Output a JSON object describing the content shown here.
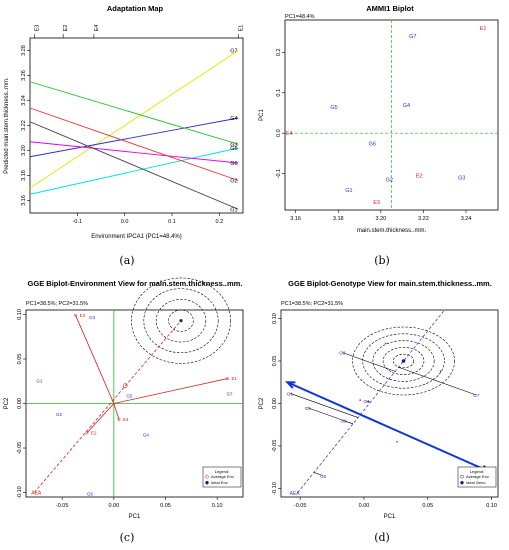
{
  "chart_data": [
    {
      "type": "line",
      "title": "Adaptation Map",
      "xlabel": "Environment IPCA1 (PC1=48.4%)",
      "ylabel": "Predicted main.stem.thickness..mm.",
      "xlim": [
        -0.2,
        0.25
      ],
      "ylim": [
        3.15,
        3.29
      ],
      "xticks": [
        "-0.1",
        "0.0",
        "0.1",
        "0.2"
      ],
      "yticks": [
        "3.16",
        "3.18",
        "3.20",
        "3.22",
        "3.24",
        "3.26",
        "3.28"
      ],
      "top_axis": [
        {
          "label": "E3",
          "x": -0.19
        },
        {
          "label": "E2",
          "x": -0.13
        },
        {
          "label": "E4",
          "x": -0.065
        },
        {
          "label": "E1",
          "x": 0.24
        }
      ],
      "series": [
        {
          "name": "G7",
          "color": "#e6e600",
          "points": [
            [
              -0.2,
              3.17
            ],
            [
              0.24,
              3.28
            ]
          ]
        },
        {
          "name": "G4",
          "color": "#2b2bd6",
          "points": [
            [
              -0.2,
              3.195
            ],
            [
              0.24,
              3.226
            ]
          ]
        },
        {
          "name": "G3",
          "color": "#1fbf1f",
          "points": [
            [
              -0.2,
              3.255
            ],
            [
              0.24,
              3.205
            ]
          ]
        },
        {
          "name": "G5",
          "color": "#00e0e0",
          "points": [
            [
              -0.2,
              3.165
            ],
            [
              0.24,
              3.202
            ]
          ]
        },
        {
          "name": "G6",
          "color": "#e600e6",
          "points": [
            [
              -0.2,
              3.207
            ],
            [
              0.24,
              3.19
            ]
          ]
        },
        {
          "name": "G2",
          "color": "#e63333",
          "points": [
            [
              -0.2,
              3.234
            ],
            [
              0.24,
              3.176
            ]
          ]
        },
        {
          "name": "G1",
          "color": "#404040",
          "points": [
            [
              -0.2,
              3.223
            ],
            [
              0.24,
              3.153
            ]
          ]
        }
      ],
      "line_labels": [
        "G7",
        "G4",
        "G3",
        "G5",
        "G6",
        "G2",
        "G1"
      ]
    },
    {
      "type": "scatter",
      "title": "AMMI1 Biplot",
      "subtitle": "PC1=48.4%",
      "xlabel": "main.stem.thickness..mm.",
      "ylabel": "PC1",
      "xlim": [
        3.155,
        3.255
      ],
      "ylim": [
        -0.19,
        0.28
      ],
      "xticks": [
        "3.16",
        "3.18",
        "3.20",
        "3.22",
        "3.24"
      ],
      "yticks": [
        "-0.1",
        "0.0",
        "0.1",
        "0.2"
      ],
      "ref_x": 3.205,
      "ref_y": 0.0,
      "points": [
        {
          "label": "E1",
          "x": 3.248,
          "y": 0.26,
          "group": "env"
        },
        {
          "label": "G7",
          "x": 3.215,
          "y": 0.24,
          "group": "gen"
        },
        {
          "label": "G5",
          "x": 3.178,
          "y": 0.065,
          "group": "gen"
        },
        {
          "label": "G4",
          "x": 3.212,
          "y": 0.07,
          "group": "gen"
        },
        {
          "label": "E4",
          "x": 3.157,
          "y": 0.0,
          "group": "env"
        },
        {
          "label": "G6",
          "x": 3.196,
          "y": -0.025,
          "group": "gen"
        },
        {
          "label": "E2",
          "x": 3.218,
          "y": -0.105,
          "group": "env"
        },
        {
          "label": "G2",
          "x": 3.204,
          "y": -0.115,
          "group": "gen"
        },
        {
          "label": "G3",
          "x": 3.238,
          "y": -0.11,
          "group": "gen"
        },
        {
          "label": "G1",
          "x": 3.185,
          "y": -0.14,
          "group": "gen"
        },
        {
          "label": "E3",
          "x": 3.198,
          "y": -0.17,
          "group": "env"
        }
      ]
    },
    {
      "type": "scatter",
      "title": "GGE Biplot-Environment View for main.stem.thickness..mm.",
      "subtitle": "PC1=38.5%; PC2=31.5%",
      "xlabel": "PC1",
      "ylabel": "PC2",
      "xlim": [
        -0.085,
        0.125
      ],
      "ylim": [
        -0.105,
        0.105
      ],
      "xticks": [
        "-0.05",
        "0.00",
        "0.05",
        "0.10"
      ],
      "yticks": [
        "-0.10",
        "-0.05",
        "0.00",
        "0.05",
        "0.10"
      ],
      "ideal": {
        "x": 0.065,
        "y": 0.093
      },
      "ring_radii": [
        0.012,
        0.024,
        0.036,
        0.048
      ],
      "aea_start": {
        "x": -0.077,
        "y": -0.1
      },
      "aea_label": "AEA",
      "env_vectors": [
        {
          "label": "E3",
          "x": -0.037,
          "y": 0.099
        },
        {
          "label": "E1",
          "x": 0.11,
          "y": 0.028
        },
        {
          "label": "E2",
          "x": -0.026,
          "y": -0.033
        },
        {
          "label": "E4",
          "x": 0.005,
          "y": -0.018
        }
      ],
      "genotypes": [
        {
          "label": "G3",
          "x": -0.021,
          "y": 0.097
        },
        {
          "label": "G1",
          "x": -0.072,
          "y": 0.026
        },
        {
          "label": "G2",
          "x": -0.053,
          "y": -0.012
        },
        {
          "label": "G5",
          "x": 0.015,
          "y": 0.009
        },
        {
          "label": "G7",
          "x": 0.112,
          "y": 0.011
        },
        {
          "label": "G4",
          "x": 0.031,
          "y": -0.035
        },
        {
          "label": "G6",
          "x": -0.023,
          "y": -0.101
        }
      ],
      "legend": {
        "title": "Legend:",
        "items": [
          {
            "label": "Average Env",
            "symbol": "circle-open",
            "color": "#d42020"
          },
          {
            "label": "Ideal Env",
            "symbol": "circle-filled",
            "color": "#1a1a8c"
          }
        ]
      }
    },
    {
      "type": "scatter",
      "title": "GGE Biplot-Genotype View for main.stem.thickness..mm.",
      "subtitle": "PC1=38.5%; PC2=31.5%",
      "xlabel": "PC1",
      "ylabel": "PC2",
      "xlim": [
        -0.065,
        0.105
      ],
      "ylim": [
        -0.11,
        0.11
      ],
      "xticks": [
        "-0.05",
        "0.00",
        "0.05",
        "0.10"
      ],
      "yticks": [
        "-0.10",
        "-0.05",
        "0.00",
        "0.05",
        "0.10"
      ],
      "ideal": {
        "x": 0.031,
        "y": 0.05
      },
      "ring_radii": [
        0.008,
        0.016,
        0.024,
        0.032,
        0.04
      ],
      "aea_start": {
        "x": -0.052,
        "y": -0.105
      },
      "aea_label": "AEA",
      "arrow_line": {
        "from": {
          "x": -0.06,
          "y": 0.025
        },
        "to": {
          "x": 0.098,
          "y": -0.08
        }
      },
      "genotypes": [
        {
          "label": "G3",
          "x": -0.017,
          "y": 0.06
        },
        {
          "label": "G1",
          "x": -0.058,
          "y": 0.012
        },
        {
          "label": "G5",
          "x": -0.044,
          "y": -0.005
        },
        {
          "label": "G2",
          "x": -0.016,
          "y": -0.02
        },
        {
          "label": "G6",
          "x": -0.032,
          "y": -0.085
        },
        {
          "label": "G4",
          "x": 0.002,
          "y": 0.003
        },
        {
          "label": "G7",
          "x": 0.088,
          "y": 0.01
        }
      ],
      "env_points": [
        {
          "x": 0.017,
          "y": 0.071
        },
        {
          "x": 0.06,
          "y": 0.038
        },
        {
          "x": -0.003,
          "y": 0.004
        },
        {
          "x": 0.026,
          "y": -0.045
        }
      ],
      "legend": {
        "title": "Legend:",
        "items": [
          {
            "label": "Average Env",
            "symbol": "circle-open",
            "color": "#1a1a8c"
          },
          {
            "label": "Ideal Geno",
            "symbol": "circle-filled",
            "color": "#1a1a8c"
          }
        ]
      }
    }
  ],
  "captions": [
    "(a)",
    "(b)",
    "(c)",
    "(d)"
  ]
}
